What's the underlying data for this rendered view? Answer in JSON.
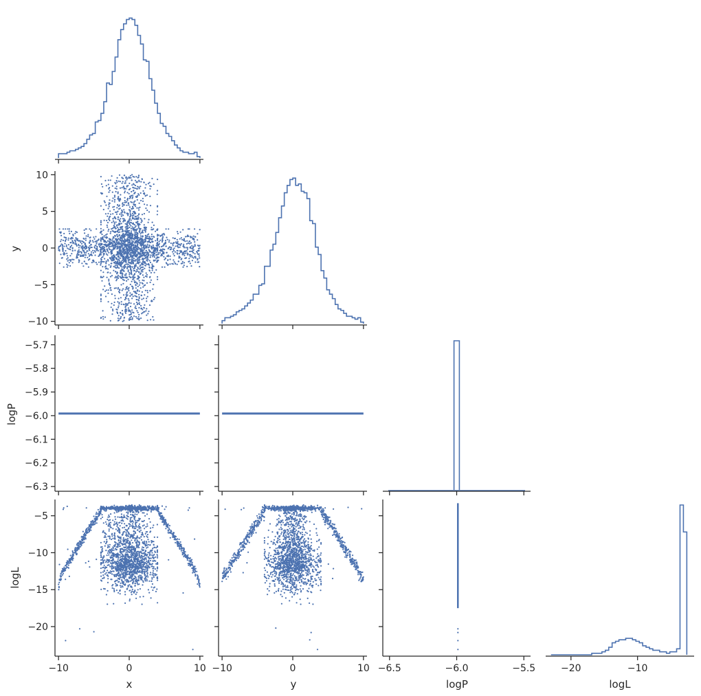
{
  "chart_data": {
    "type": "scatter",
    "variables": [
      "x",
      "y",
      "logP",
      "logL"
    ],
    "color": "#4c72b0",
    "panels": [
      {
        "row": 0,
        "col": 0,
        "type": "histogram",
        "var": "x",
        "xlim": [
          -10.5,
          10.5
        ],
        "xticks": [
          -10,
          0,
          10
        ],
        "bins": {
          "edges": [
            -10,
            10
          ],
          "counts": [
            3,
            3,
            3,
            4,
            5,
            5,
            6,
            7,
            8,
            10,
            13,
            16,
            17,
            25,
            26,
            31,
            39,
            52,
            51,
            60,
            70,
            82,
            89,
            93,
            96,
            97,
            96,
            92,
            85,
            79,
            68,
            67,
            55,
            47,
            38,
            31,
            24,
            22,
            17,
            15,
            12,
            9,
            7,
            5,
            4,
            4,
            3,
            3,
            4,
            1
          ]
        },
        "ylim": [
          0,
          100
        ]
      },
      {
        "row": 1,
        "col": 0,
        "type": "scatter",
        "xvar": "x",
        "yvar": "y",
        "xlim": [
          -10.5,
          10.5
        ],
        "ylim": [
          -10.5,
          10.5
        ],
        "xticks": [
          -10,
          0,
          10
        ],
        "yticks": [
          10,
          5,
          0,
          -5,
          -10
        ],
        "distribution": "cross: wide horizontal band |y|<2.5 across x in [-10,10], vertical band |x|<4 across y in [-10,10], dense center",
        "n_points": 3000
      },
      {
        "row": 1,
        "col": 1,
        "type": "histogram",
        "var": "y",
        "xlim": [
          -10.5,
          10.5
        ],
        "xticks": [
          -10,
          0,
          10
        ],
        "bins": {
          "edges": [
            -10,
            10
          ],
          "counts": [
            2,
            4,
            4,
            5,
            6,
            8,
            9,
            10,
            12,
            14,
            16,
            20,
            20,
            26,
            27,
            39,
            39,
            50,
            54,
            62,
            72,
            80,
            89,
            94,
            98,
            99,
            94,
            95,
            90,
            89,
            85,
            70,
            68,
            52,
            47,
            36,
            31,
            23,
            20,
            17,
            13,
            10,
            9,
            7,
            5,
            5,
            4,
            3,
            4,
            1
          ]
        },
        "ylim": [
          0,
          100
        ]
      },
      {
        "row": 2,
        "col": 0,
        "type": "scatter",
        "xvar": "x",
        "yvar": "logP",
        "xlim": [
          -10.5,
          10.5
        ],
        "ylim": [
          -6.32,
          -5.66
        ],
        "xticks": [
          -10,
          0,
          10
        ],
        "yticks": [
          -5.7,
          -5.8,
          -5.9,
          -6.0,
          -6.1,
          -6.2,
          -6.3
        ],
        "constant_y": -5.991
      },
      {
        "row": 2,
        "col": 1,
        "type": "scatter",
        "xvar": "y",
        "yvar": "logP",
        "xlim": [
          -10.5,
          10.5
        ],
        "ylim": [
          -6.32,
          -5.66
        ],
        "xticks": [
          -10,
          0,
          10
        ],
        "constant_y": -5.991
      },
      {
        "row": 2,
        "col": 2,
        "type": "histogram",
        "var": "logP",
        "xlim": [
          -6.55,
          -5.45
        ],
        "xticks": [
          -6.5,
          -6.0,
          -5.5
        ],
        "bins": {
          "edges": [
            -6.02,
            -5.98
          ],
          "counts": [
            100
          ]
        },
        "ylim": [
          0,
          100
        ]
      },
      {
        "row": 3,
        "col": 0,
        "type": "scatter",
        "xvar": "x",
        "yvar": "logL",
        "xlim": [
          -10.5,
          10.5
        ],
        "ylim": [
          -24,
          -2.8
        ],
        "xticks": [
          -10,
          0,
          10
        ],
        "yticks": [
          -5,
          -10,
          -15,
          -20
        ],
        "outliers": [
          [
            -9,
            -21.9
          ],
          [
            -7,
            -20.3
          ],
          [
            -5,
            -20.7
          ],
          [
            9,
            -23.1
          ]
        ]
      },
      {
        "row": 3,
        "col": 1,
        "type": "scatter",
        "xvar": "y",
        "yvar": "logL",
        "xlim": [
          -10.5,
          10.5
        ],
        "ylim": [
          -24,
          -2.8
        ],
        "xticks": [
          -10,
          0,
          10
        ],
        "outliers": [
          [
            -2.4,
            -20.2
          ],
          [
            2.6,
            -20.8
          ],
          [
            2.4,
            -21.8
          ],
          [
            3.5,
            -23.1
          ]
        ]
      },
      {
        "row": 3,
        "col": 2,
        "type": "scatter",
        "xvar": "logP",
        "yvar": "logL",
        "xlim": [
          -6.55,
          -5.45
        ],
        "ylim": [
          -24,
          -2.8
        ],
        "xticks": [
          -6.5,
          -6.0,
          -5.5
        ],
        "constant_x": -5.991,
        "outliers_y": [
          -20.3,
          -20.8,
          -21.9,
          -23.1
        ]
      },
      {
        "row": 3,
        "col": 3,
        "type": "histogram",
        "var": "logL",
        "xlim": [
          -23.8,
          -1.5
        ],
        "xticks": [
          -20,
          -10
        ],
        "bins": {
          "edges": [
            -23,
            -2.6
          ],
          "counts": [
            0,
            0,
            0,
            0,
            0,
            0,
            0,
            0,
            0,
            0,
            0,
            0,
            1,
            1,
            1,
            2,
            3,
            5,
            8,
            9,
            10,
            10,
            11,
            11,
            10,
            9,
            8,
            6,
            5,
            4,
            3,
            3,
            2,
            2,
            1,
            2,
            2,
            4,
            100,
            82
          ]
        },
        "ylim": [
          0,
          100
        ]
      }
    ],
    "xlabels": [
      "x",
      "y",
      "logP",
      "logL"
    ],
    "ylabels": [
      "",
      "y",
      "logP",
      "logL"
    ],
    "tick_labels": {
      "x_x": [
        "−10",
        "0",
        "10"
      ],
      "x_y": [
        "−10",
        "0",
        "10"
      ],
      "x_logP": [
        "−6.5",
        "−6.0",
        "−5.5"
      ],
      "x_logL": [
        "−20",
        "−10"
      ],
      "y_y": [
        "10",
        "5",
        "0",
        "−5",
        "−10"
      ],
      "y_logP": [
        "−5.7",
        "−5.8",
        "−5.9",
        "−6.0",
        "−6.1",
        "−6.2",
        "−6.3"
      ],
      "y_logL": [
        "−5",
        "−10",
        "−15",
        "−20"
      ]
    }
  }
}
